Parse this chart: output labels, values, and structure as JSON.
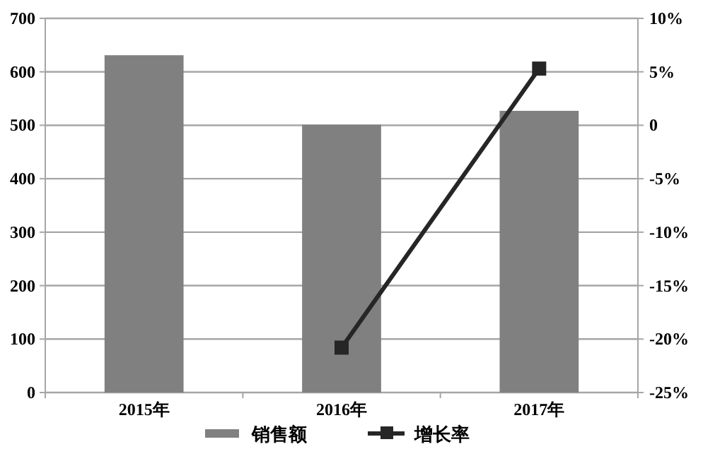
{
  "chart_data": {
    "type": "bar",
    "categories": [
      "2015年",
      "2016年",
      "2017年"
    ],
    "series": [
      {
        "name": "销售额",
        "color": "#808080",
        "values": [
          631,
          501,
          527
        ]
      },
      {
        "name": "增长率",
        "type": "line",
        "axis": "y2",
        "color": "#262626",
        "marker": "square",
        "values": [
          null,
          -20.8,
          5.3
        ]
      }
    ],
    "ylim": [
      0,
      700
    ],
    "yticks": [
      0,
      100,
      200,
      300,
      400,
      500,
      600,
      700
    ],
    "y2lim": [
      -25,
      10
    ],
    "y2ticks": [
      {
        "value": -25,
        "label": "-25%"
      },
      {
        "value": -20,
        "label": "-20%"
      },
      {
        "value": -15,
        "label": "-15%"
      },
      {
        "value": -10,
        "label": "-10%"
      },
      {
        "value": -5,
        "label": "-5%"
      },
      {
        "value": 0,
        "label": "0"
      },
      {
        "value": 5,
        "label": "5%"
      },
      {
        "value": 10,
        "label": "10%"
      }
    ],
    "grid": "y",
    "legend": "bottom"
  }
}
